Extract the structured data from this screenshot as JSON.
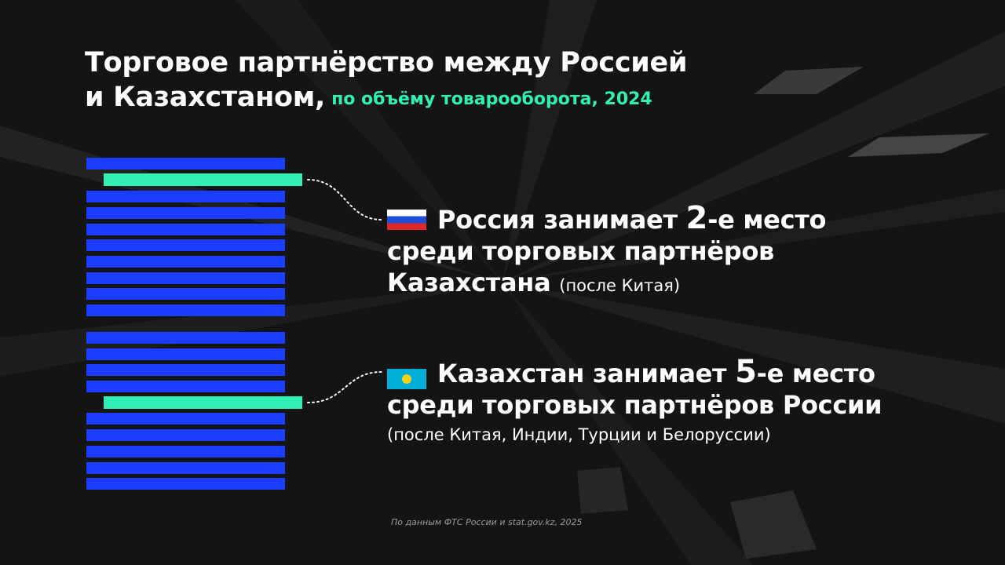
{
  "title": {
    "line1": "Торговое партнёрство между Россией",
    "line2": "и Казахстаном,",
    "subtitle": "по объёму товарооборота, 2024"
  },
  "russia": {
    "flag": "flag-russia-icon",
    "prefix": "Россия занимает ",
    "rank": "2",
    "suffix": "-е место",
    "line2": "среди торговых партнёров",
    "line3": "Казахстана",
    "note": "(после Китая)"
  },
  "kazakhstan": {
    "flag": "flag-kazakhstan-icon",
    "prefix": "Казахстан занимает ",
    "rank": "5",
    "suffix": "-е место",
    "line2": "среди торговых партнёров России",
    "note": "(после Китая, Индии, Турции и Белоруссии)"
  },
  "source": "По данным ФТС России и stat.gov.kz, 2025",
  "colors": {
    "bar": "#1c3dff",
    "highlight": "#31f0b4",
    "background": "#141414"
  }
}
